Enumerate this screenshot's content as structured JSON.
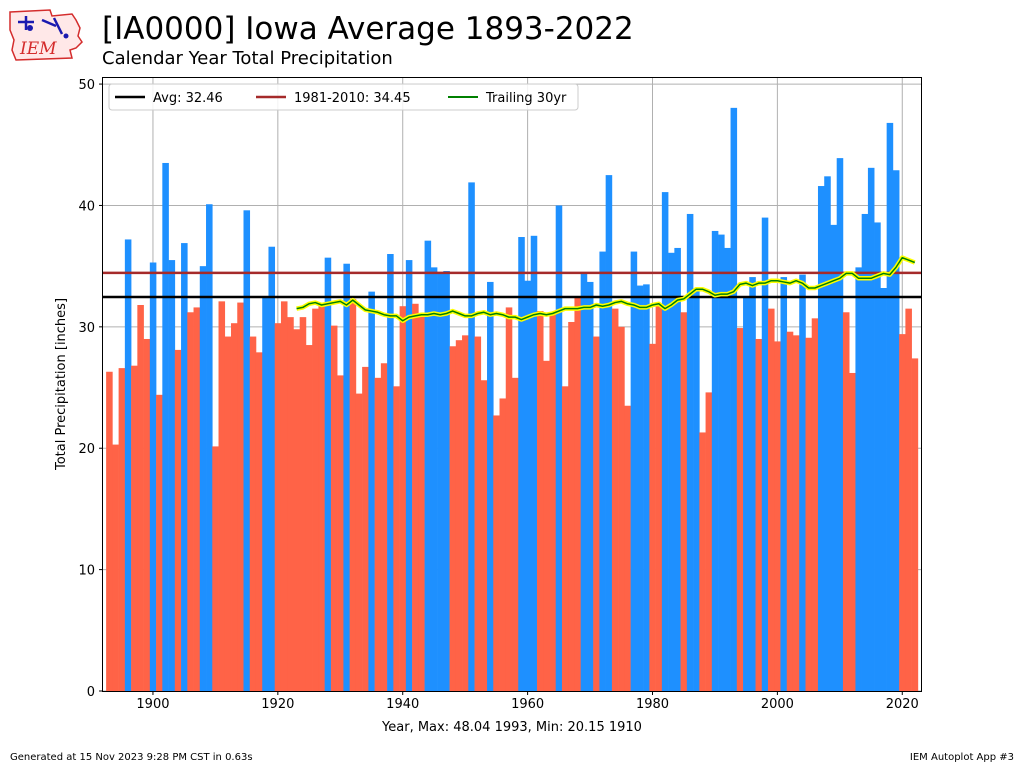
{
  "header": {
    "title": "[IA0000] Iowa Average 1893-2022",
    "subtitle": "Calendar Year Total Precipitation",
    "logo_text": "IEM"
  },
  "footer": {
    "generated": "Generated at 15 Nov 2023 9:28 PM CST in 0.63s",
    "app": "IEM Autoplot App #3"
  },
  "colors": {
    "above": "#1e90ff",
    "below": "#ff6347",
    "avg": "#000000",
    "normal": "#a52a2a",
    "trailing": "#008000",
    "trailing_halo": "#ffff00"
  },
  "chart_data": {
    "type": "bar",
    "title": "[IA0000] Iowa Average 1893-2022",
    "subtitle": "Calendar Year Total Precipitation",
    "xlabel": "Year, Max: 48.04 1993, Min: 20.15 1910",
    "ylabel": "Total Precipitation [inches]",
    "xlim": [
      1892,
      2023
    ],
    "ylim": [
      0,
      50.5
    ],
    "xticks": [
      1900,
      1920,
      1940,
      1960,
      1980,
      2000,
      2020
    ],
    "yticks": [
      0,
      10,
      20,
      30,
      40,
      50
    ],
    "grid": true,
    "legend_position": "top-left",
    "legend": [
      {
        "label": "Avg: 32.46",
        "color": "#000000",
        "key": "avg"
      },
      {
        "label": "1981-2010: 34.45",
        "color": "#a52a2a",
        "key": "normal"
      },
      {
        "label": "Trailing 30yr",
        "color": "#008000",
        "key": "trailing"
      }
    ],
    "average": 32.46,
    "normal_1981_2010": 34.45,
    "years": [
      1893,
      1894,
      1895,
      1896,
      1897,
      1898,
      1899,
      1900,
      1901,
      1902,
      1903,
      1904,
      1905,
      1906,
      1907,
      1908,
      1909,
      1910,
      1911,
      1912,
      1913,
      1914,
      1915,
      1916,
      1917,
      1918,
      1919,
      1920,
      1921,
      1922,
      1923,
      1924,
      1925,
      1926,
      1927,
      1928,
      1929,
      1930,
      1931,
      1932,
      1933,
      1934,
      1935,
      1936,
      1937,
      1938,
      1939,
      1940,
      1941,
      1942,
      1943,
      1944,
      1945,
      1946,
      1947,
      1948,
      1949,
      1950,
      1951,
      1952,
      1953,
      1954,
      1955,
      1956,
      1957,
      1958,
      1959,
      1960,
      1961,
      1962,
      1963,
      1964,
      1965,
      1966,
      1967,
      1968,
      1969,
      1970,
      1971,
      1972,
      1973,
      1974,
      1975,
      1976,
      1977,
      1978,
      1979,
      1980,
      1981,
      1982,
      1983,
      1984,
      1985,
      1986,
      1987,
      1988,
      1989,
      1990,
      1991,
      1992,
      1993,
      1994,
      1995,
      1996,
      1997,
      1998,
      1999,
      2000,
      2001,
      2002,
      2003,
      2004,
      2005,
      2006,
      2007,
      2008,
      2009,
      2010,
      2011,
      2012,
      2013,
      2014,
      2015,
      2016,
      2017,
      2018,
      2019,
      2020,
      2021,
      2022
    ],
    "values": [
      26.3,
      20.3,
      26.6,
      37.2,
      26.8,
      31.8,
      29.0,
      35.3,
      24.4,
      43.5,
      35.5,
      28.1,
      36.9,
      31.2,
      31.6,
      35.0,
      40.1,
      20.15,
      32.1,
      29.2,
      30.3,
      32.0,
      39.6,
      29.2,
      27.9,
      32.5,
      36.6,
      30.3,
      32.1,
      30.8,
      29.8,
      30.8,
      28.5,
      31.5,
      31.8,
      35.7,
      30.1,
      26.0,
      35.2,
      32.3,
      24.5,
      26.7,
      32.9,
      25.8,
      27.0,
      36.0,
      25.1,
      31.7,
      35.5,
      31.9,
      31.0,
      37.1,
      34.9,
      34.4,
      34.6,
      28.4,
      28.9,
      29.3,
      41.9,
      29.2,
      25.6,
      33.7,
      22.7,
      24.1,
      31.6,
      25.8,
      37.4,
      33.8,
      37.5,
      31.3,
      27.2,
      31.0,
      40.0,
      25.1,
      30.4,
      32.4,
      34.5,
      33.7,
      29.2,
      36.2,
      42.5,
      31.5,
      30.0,
      23.5,
      36.2,
      33.4,
      33.5,
      28.6,
      31.9,
      41.1,
      36.1,
      36.5,
      31.2,
      39.3,
      33.0,
      21.3,
      24.6,
      37.9,
      37.6,
      36.5,
      48.04,
      29.9,
      32.5,
      34.1,
      29.0,
      39.0,
      31.5,
      28.8,
      34.1,
      29.6,
      29.3,
      34.3,
      29.1,
      30.7,
      41.6,
      42.4,
      38.4,
      43.9,
      31.2,
      26.2,
      34.9,
      39.3,
      43.1,
      38.6,
      33.2,
      46.8,
      42.9,
      29.4,
      31.5,
      27.4
    ],
    "trailing_30yr": {
      "years": [
        1923,
        1924,
        1925,
        1926,
        1927,
        1928,
        1929,
        1930,
        1931,
        1932,
        1933,
        1934,
        1935,
        1936,
        1937,
        1938,
        1939,
        1940,
        1941,
        1942,
        1943,
        1944,
        1945,
        1946,
        1947,
        1948,
        1949,
        1950,
        1951,
        1952,
        1953,
        1954,
        1955,
        1956,
        1957,
        1958,
        1959,
        1960,
        1961,
        1962,
        1963,
        1964,
        1965,
        1966,
        1967,
        1968,
        1969,
        1970,
        1971,
        1972,
        1973,
        1974,
        1975,
        1976,
        1977,
        1978,
        1979,
        1980,
        1981,
        1982,
        1983,
        1984,
        1985,
        1986,
        1987,
        1988,
        1989,
        1990,
        1991,
        1992,
        1993,
        1994,
        1995,
        1996,
        1997,
        1998,
        1999,
        2000,
        2001,
        2002,
        2003,
        2004,
        2005,
        2006,
        2007,
        2008,
        2009,
        2010,
        2011,
        2012,
        2013,
        2014,
        2015,
        2016,
        2017,
        2018,
        2019,
        2020,
        2021,
        2022
      ],
      "values": [
        31.5,
        31.6,
        31.9,
        32.0,
        31.8,
        31.9,
        32.0,
        32.1,
        31.8,
        32.2,
        31.8,
        31.4,
        31.3,
        31.2,
        31.0,
        30.9,
        30.9,
        30.5,
        30.8,
        30.9,
        31.0,
        31.0,
        31.1,
        31.0,
        31.1,
        31.3,
        31.1,
        30.9,
        30.9,
        31.1,
        31.2,
        31.0,
        31.1,
        31.0,
        30.8,
        30.8,
        30.6,
        30.8,
        31.0,
        31.1,
        31.0,
        31.1,
        31.3,
        31.5,
        31.5,
        31.5,
        31.6,
        31.6,
        31.8,
        31.7,
        31.8,
        32.0,
        32.1,
        31.9,
        31.8,
        31.6,
        31.6,
        31.8,
        31.9,
        31.5,
        31.8,
        32.2,
        32.3,
        32.7,
        33.1,
        33.1,
        32.9,
        32.6,
        32.7,
        32.7,
        32.9,
        33.5,
        33.6,
        33.4,
        33.6,
        33.6,
        33.8,
        33.8,
        33.7,
        33.6,
        33.8,
        33.6,
        33.2,
        33.2,
        33.4,
        33.6,
        33.8,
        34.0,
        34.4,
        34.4,
        34.0,
        34.0,
        34.0,
        34.2,
        34.4,
        34.3,
        34.9,
        35.7,
        35.5,
        35.3
      ]
    }
  }
}
